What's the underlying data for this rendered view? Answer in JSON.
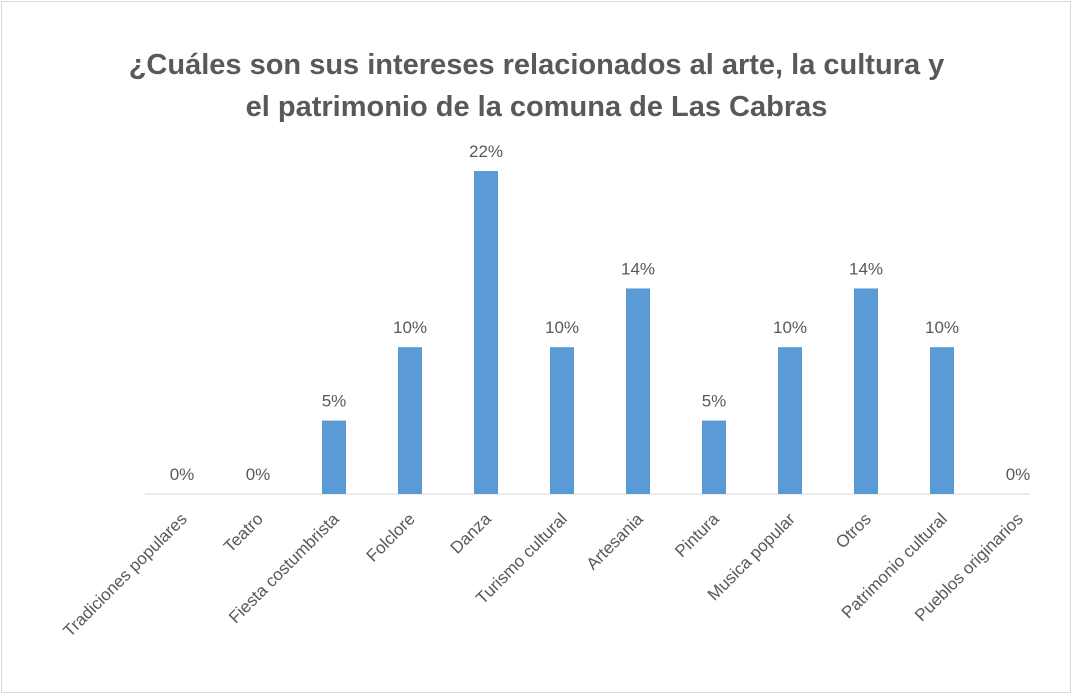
{
  "chart_data": {
    "type": "bar",
    "title": "¿Cuáles son sus intereses relacionados al arte, la cultura y el patrimonio de la comuna de Las Cabras",
    "categories": [
      "Tradiciones populares",
      "Teatro",
      "Fiesta costumbrista",
      "Folclore",
      "Danza",
      "Turismo cultural",
      "Artesania",
      "Pintura",
      "Musica popular",
      "Otros",
      "Patrimonio cultural",
      "Pueblos originarios"
    ],
    "values": [
      0,
      0,
      5,
      10,
      22,
      10,
      14,
      5,
      10,
      14,
      10,
      0
    ],
    "value_labels": [
      "0%",
      "0%",
      "5%",
      "10%",
      "22%",
      "10%",
      "14%",
      "5%",
      "10%",
      "14%",
      "10%",
      "0%"
    ],
    "color": "#5b9bd5"
  }
}
